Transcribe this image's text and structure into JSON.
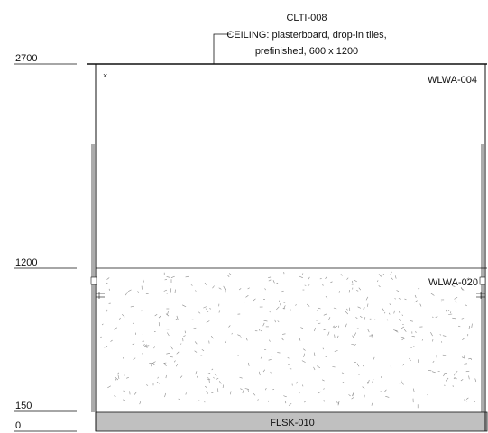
{
  "levels": {
    "l2700": "2700",
    "l1200": "1200",
    "l150": "150",
    "l0": "0"
  },
  "ceiling": {
    "code": "CLTI-008",
    "line1": "CEILING: plasterboard, drop-in tiles,",
    "line2": "prefinished, 600 x 1200"
  },
  "walls": {
    "upper": "WLWA-004",
    "lower": "WLWA-020"
  },
  "floor": {
    "skirting": "FLSK-010"
  },
  "colors": {
    "line": "#111111",
    "skirting_fill": "#c0c0c0",
    "speckle": "#8a8a8a"
  }
}
